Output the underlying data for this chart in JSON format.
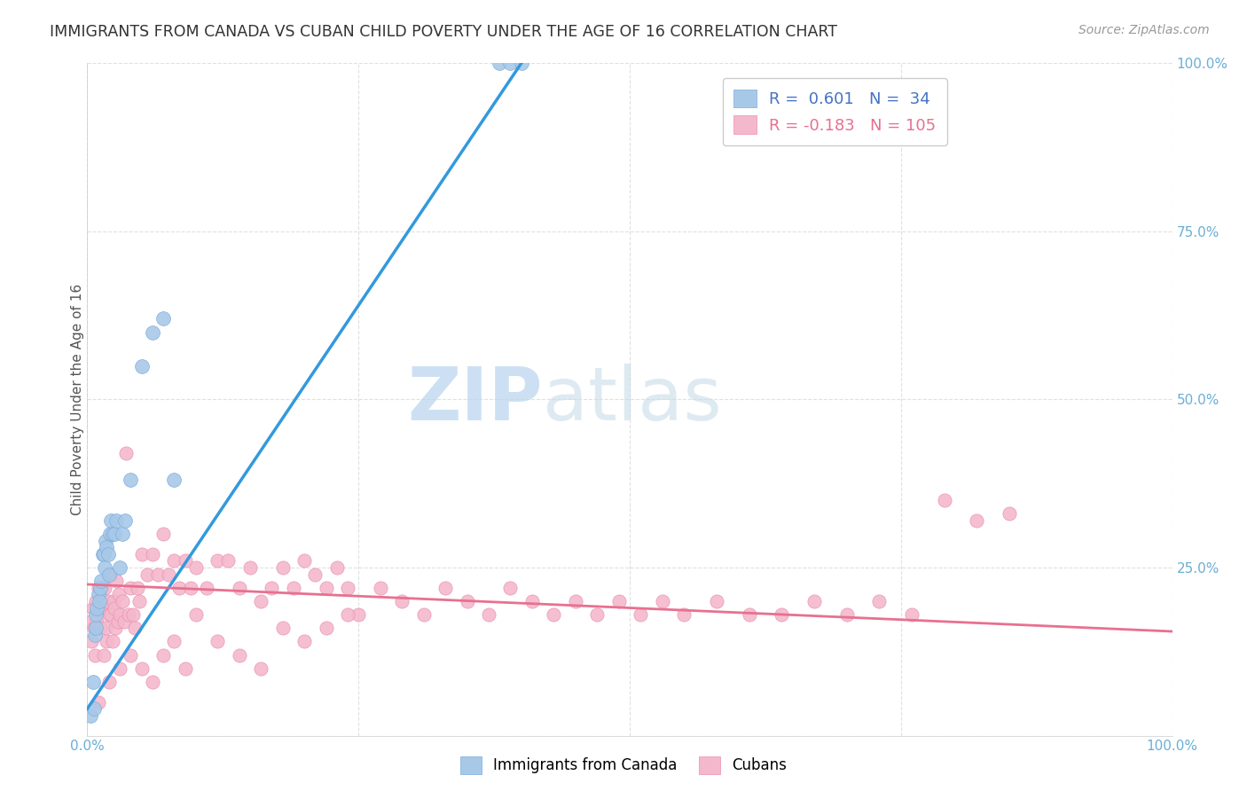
{
  "title": "IMMIGRANTS FROM CANADA VS CUBAN CHILD POVERTY UNDER THE AGE OF 16 CORRELATION CHART",
  "source": "Source: ZipAtlas.com",
  "ylabel": "Child Poverty Under the Age of 16",
  "xlim": [
    0,
    1.0
  ],
  "ylim": [
    0,
    1.0
  ],
  "xticks": [
    0.0,
    0.25,
    0.5,
    0.75,
    1.0
  ],
  "yticks": [
    0.0,
    0.25,
    0.5,
    0.75,
    1.0
  ],
  "xticklabels": [
    "0.0%",
    "",
    "",
    "",
    "100.0%"
  ],
  "yticklabels": [
    "",
    "25.0%",
    "50.0%",
    "75.0%",
    "100.0%"
  ],
  "background_color": "#ffffff",
  "grid_color": "#e0e0e0",
  "canada_color": "#a8c8e8",
  "cuban_color": "#f4b8cc",
  "canada_edge_color": "#7aabdb",
  "cuban_edge_color": "#e890b0",
  "canada_R": 0.601,
  "canada_N": 34,
  "cuban_R": -0.183,
  "cuban_N": 105,
  "legend_label_canada": "Immigrants from Canada",
  "legend_label_cuban": "Cubans",
  "watermark_zip": "ZIP",
  "watermark_atlas": "atlas",
  "tick_color": "#6baed6",
  "canada_line_color": "#3399dd",
  "cuban_line_color": "#e87090",
  "canada_scatter_x": [
    0.003,
    0.005,
    0.006,
    0.007,
    0.008,
    0.008,
    0.009,
    0.01,
    0.011,
    0.012,
    0.013,
    0.014,
    0.015,
    0.016,
    0.017,
    0.018,
    0.019,
    0.02,
    0.021,
    0.022,
    0.023,
    0.025,
    0.027,
    0.03,
    0.032,
    0.035,
    0.04,
    0.05,
    0.06,
    0.07,
    0.08,
    0.38,
    0.39,
    0.4
  ],
  "canada_scatter_y": [
    0.03,
    0.08,
    0.04,
    0.15,
    0.16,
    0.18,
    0.19,
    0.21,
    0.2,
    0.22,
    0.23,
    0.27,
    0.27,
    0.25,
    0.29,
    0.28,
    0.27,
    0.24,
    0.3,
    0.32,
    0.3,
    0.3,
    0.32,
    0.25,
    0.3,
    0.32,
    0.38,
    0.55,
    0.6,
    0.62,
    0.38,
    1.0,
    1.0,
    1.0
  ],
  "cuban_scatter_x": [
    0.003,
    0.004,
    0.005,
    0.006,
    0.007,
    0.008,
    0.009,
    0.01,
    0.011,
    0.012,
    0.013,
    0.014,
    0.015,
    0.016,
    0.017,
    0.018,
    0.019,
    0.02,
    0.021,
    0.022,
    0.023,
    0.024,
    0.025,
    0.026,
    0.027,
    0.028,
    0.029,
    0.03,
    0.032,
    0.034,
    0.036,
    0.038,
    0.04,
    0.042,
    0.044,
    0.046,
    0.048,
    0.05,
    0.055,
    0.06,
    0.065,
    0.07,
    0.075,
    0.08,
    0.085,
    0.09,
    0.095,
    0.1,
    0.11,
    0.12,
    0.13,
    0.14,
    0.15,
    0.16,
    0.17,
    0.18,
    0.19,
    0.2,
    0.21,
    0.22,
    0.23,
    0.24,
    0.25,
    0.27,
    0.29,
    0.31,
    0.33,
    0.35,
    0.37,
    0.39,
    0.41,
    0.43,
    0.45,
    0.47,
    0.49,
    0.51,
    0.53,
    0.55,
    0.58,
    0.61,
    0.64,
    0.67,
    0.7,
    0.73,
    0.76,
    0.79,
    0.82,
    0.85,
    0.01,
    0.02,
    0.03,
    0.04,
    0.05,
    0.06,
    0.07,
    0.08,
    0.09,
    0.1,
    0.12,
    0.14,
    0.16,
    0.18,
    0.2,
    0.22,
    0.24
  ],
  "cuban_scatter_y": [
    0.17,
    0.14,
    0.19,
    0.16,
    0.12,
    0.2,
    0.17,
    0.22,
    0.19,
    0.16,
    0.22,
    0.19,
    0.12,
    0.22,
    0.16,
    0.14,
    0.2,
    0.18,
    0.24,
    0.18,
    0.14,
    0.2,
    0.19,
    0.16,
    0.23,
    0.17,
    0.21,
    0.18,
    0.2,
    0.17,
    0.42,
    0.18,
    0.22,
    0.18,
    0.16,
    0.22,
    0.2,
    0.27,
    0.24,
    0.27,
    0.24,
    0.3,
    0.24,
    0.26,
    0.22,
    0.26,
    0.22,
    0.25,
    0.22,
    0.26,
    0.26,
    0.22,
    0.25,
    0.2,
    0.22,
    0.25,
    0.22,
    0.26,
    0.24,
    0.22,
    0.25,
    0.22,
    0.18,
    0.22,
    0.2,
    0.18,
    0.22,
    0.2,
    0.18,
    0.22,
    0.2,
    0.18,
    0.2,
    0.18,
    0.2,
    0.18,
    0.2,
    0.18,
    0.2,
    0.18,
    0.18,
    0.2,
    0.18,
    0.2,
    0.18,
    0.35,
    0.32,
    0.33,
    0.05,
    0.08,
    0.1,
    0.12,
    0.1,
    0.08,
    0.12,
    0.14,
    0.1,
    0.18,
    0.14,
    0.12,
    0.1,
    0.16,
    0.14,
    0.16,
    0.18
  ],
  "canada_line_x0": 0.0,
  "canada_line_y0": 0.04,
  "canada_line_x1": 0.4,
  "canada_line_y1": 1.0,
  "cuban_line_x0": 0.0,
  "cuban_line_y0": 0.225,
  "cuban_line_x1": 1.0,
  "cuban_line_y1": 0.155
}
